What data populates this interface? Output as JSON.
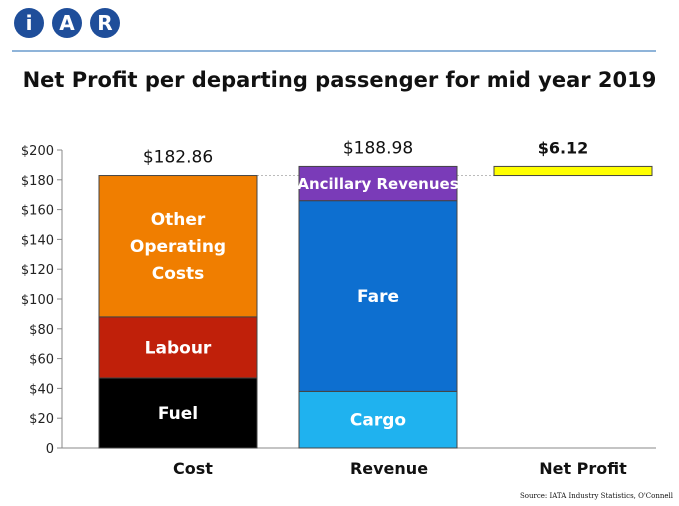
{
  "logo": {
    "letters": [
      "i",
      "A",
      "R"
    ]
  },
  "chart_data": {
    "type": "bar",
    "title": "Net Profit per departing passenger for mid year 2019",
    "categories": [
      "Cost",
      "Revenue",
      "Net Profit"
    ],
    "ylim": [
      0,
      200
    ],
    "yticks": [
      0,
      20,
      40,
      60,
      80,
      100,
      120,
      140,
      160,
      180,
      200
    ],
    "ytick_labels": [
      "0",
      "$20",
      "$40",
      "$60",
      "$80",
      "$100",
      "$120",
      "$140",
      "$160",
      "$180",
      "$200"
    ],
    "stacks": [
      {
        "category": "Cost",
        "total_label": "$182.86",
        "segments": [
          {
            "name": "Fuel",
            "value": 47,
            "color": "#000000"
          },
          {
            "name": "Labour",
            "value": 41,
            "color": "#c0200a"
          },
          {
            "name": "Other Operating Costs",
            "label_lines": [
              "Other",
              "Operating",
              "Costs"
            ],
            "value": 94.86,
            "color": "#f07e00"
          }
        ]
      },
      {
        "category": "Revenue",
        "total_label": "$188.98",
        "segments": [
          {
            "name": "Cargo",
            "value": 38,
            "color": "#1fb2ef"
          },
          {
            "name": "Fare",
            "value": 128,
            "color": "#0d6fd0"
          },
          {
            "name": "Ancillary Revenues",
            "value": 22.98,
            "color": "#7a3bb8"
          }
        ]
      },
      {
        "category": "Net Profit",
        "total_label": "$6.12",
        "float_base": 182.86,
        "segments": [
          {
            "name": "Net Profit",
            "value": 6.12,
            "color": "#ffff00"
          }
        ]
      }
    ],
    "reference_line": 182.86
  },
  "source": "Source: IATA Industry Statistics, O'Connell"
}
